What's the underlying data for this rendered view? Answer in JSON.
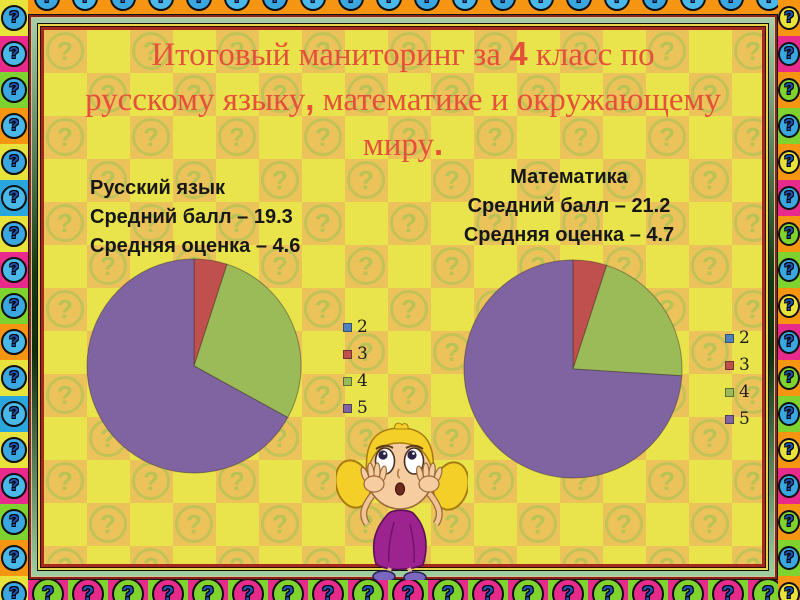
{
  "slide_title": {
    "color": "#e5503a",
    "full_text": "Итоговый маниторинг за 4 класс  по русскому языку, математике и окружающему миру.",
    "lines": [
      [
        {
          "t": "Итоговый маниторинг за "
        },
        {
          "t": "4",
          "b": true
        },
        {
          "t": " класс  по"
        }
      ],
      [
        {
          "t": "русскому языку"
        },
        {
          "t": ",",
          "b": true
        },
        {
          "t": " математике и окружающему"
        }
      ],
      [
        {
          "t": "миру"
        },
        {
          "t": ".",
          "b": true
        }
      ]
    ]
  },
  "russian_block": {
    "title": "Русский язык",
    "avg_score": "Средний балл – 19.3",
    "avg_grade": "Средняя оценка – 4.6"
  },
  "math_block": {
    "title": "Математика",
    "avg_score": "Средний балл – 21.2",
    "avg_grade": "Средняя оценка – 4.7"
  },
  "chart_data": [
    {
      "type": "pie",
      "subject": "Русский язык",
      "average_score": 19.3,
      "average_grade": 4.6,
      "categories": [
        "2",
        "3",
        "4",
        "5"
      ],
      "values_percent": [
        0,
        5,
        28,
        67
      ],
      "colors": [
        "#4F81BD",
        "#C0504D",
        "#9BBB59",
        "#8064A2"
      ],
      "legend_position": "right",
      "start_angle_deg": 0,
      "direction": "clockwise"
    },
    {
      "type": "pie",
      "subject": "Математика",
      "average_score": 21.2,
      "average_grade": 4.7,
      "categories": [
        "2",
        "3",
        "4",
        "5"
      ],
      "values_percent": [
        0,
        5,
        21,
        74
      ],
      "colors": [
        "#4F81BD",
        "#C0504D",
        "#9BBB59",
        "#8064A2"
      ],
      "legend_position": "right",
      "start_angle_deg": 0,
      "direction": "clockwise"
    }
  ],
  "illustration": {
    "name": "worried-girl",
    "description": "cartoon girl with blonde pigtails and purple dress holding her face"
  }
}
